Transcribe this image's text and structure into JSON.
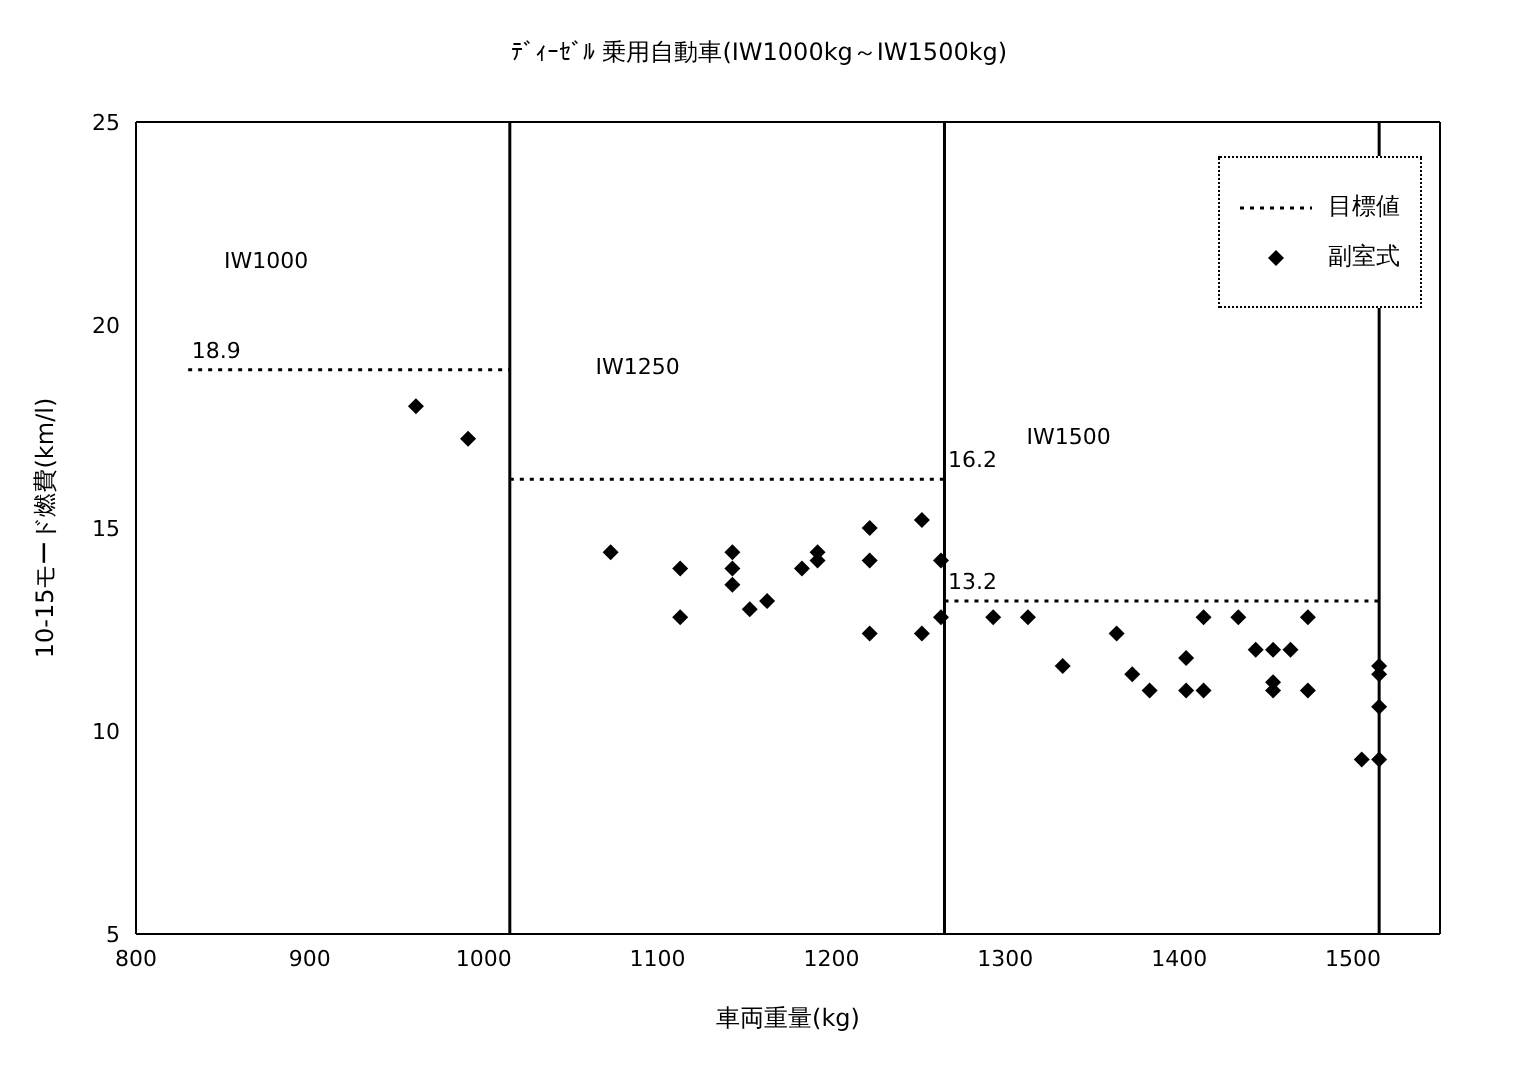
{
  "chart_data": {
    "type": "scatter",
    "title": "ﾃﾞｨｰｾﾞﾙ 乗用自動車(IW1000kg～IW1500kg)",
    "xlabel": "車両重量(kg)",
    "ylabel": "10-15モード燃費(km/l)",
    "xlim": [
      800,
      1550
    ],
    "xticks": [
      800,
      900,
      1000,
      1100,
      1200,
      1300,
      1400,
      1500
    ],
    "ylim": [
      5,
      25
    ],
    "yticks": [
      5,
      10,
      15,
      20,
      25
    ],
    "legend": "top right",
    "series": [
      {
        "name": "目標値",
        "type": "line",
        "line_style": "dotted",
        "marker": "none",
        "color": "#000000",
        "x": [
          830,
          1015,
          null,
          1015,
          1265,
          null,
          1265,
          1515
        ],
        "values": [
          18.9,
          18.9,
          null,
          16.2,
          16.2,
          null,
          13.2,
          13.2
        ],
        "value_labels": [
          "18.9",
          null,
          null,
          null,
          "16.2",
          null,
          "13.2",
          null
        ]
      },
      {
        "name": "副室式",
        "color": "#000000",
        "marker": "diamond",
        "x": [
          961,
          991,
          1073,
          1113,
          1113,
          1143,
          1143,
          1143,
          1153,
          1163,
          1183,
          1192,
          1192,
          1222,
          1222,
          1222,
          1252,
          1252,
          1263,
          1263,
          1293,
          1313,
          1333,
          1364,
          1373,
          1383,
          1404,
          1404,
          1414,
          1414,
          1434,
          1444,
          1454,
          1464,
          1454,
          1454,
          1474,
          1474,
          1515,
          1515,
          1515,
          1505,
          1515
        ],
        "values": [
          18.0,
          17.2,
          14.4,
          14.0,
          12.8,
          14.4,
          14.0,
          13.6,
          13.0,
          13.2,
          14.0,
          14.4,
          14.2,
          15.0,
          14.2,
          12.4,
          15.2,
          12.4,
          14.2,
          12.8,
          12.8,
          12.8,
          11.6,
          12.4,
          11.4,
          11.0,
          11.8,
          11.0,
          12.8,
          11.0,
          12.8,
          12.0,
          12.0,
          12.0,
          11.2,
          11.0,
          12.8,
          11.0,
          11.6,
          11.4,
          10.6,
          9.3,
          9.3
        ]
      }
    ],
    "ref_lines": [
      {
        "axis": "x",
        "value": 1015,
        "color": "#000000"
      },
      {
        "axis": "x",
        "value": 1265,
        "color": "#000000"
      },
      {
        "axis": "x",
        "value": 1515,
        "color": "#000000"
      }
    ],
    "annotations": [
      "IW1000",
      "IW1250",
      "IW1500"
    ]
  }
}
